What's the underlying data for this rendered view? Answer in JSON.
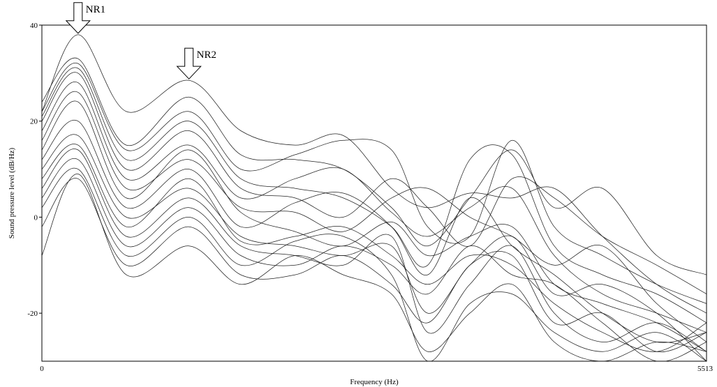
{
  "chart_data": {
    "type": "line",
    "title": "",
    "xlabel": "Frequency (Hz)",
    "ylabel": "Sound pressure level (dB/Hz)",
    "xlim": [
      0,
      5513
    ],
    "ylim": [
      -30,
      40
    ],
    "x_tick_labels": [
      "0",
      "5513"
    ],
    "y_ticks": [
      40,
      20,
      0,
      -20
    ],
    "y_tick_labels": [
      "40",
      "20",
      "0",
      "-20"
    ],
    "grid": false,
    "legend": "none",
    "annotations": [
      {
        "label": "NR1",
        "x": 300,
        "y": 38
      },
      {
        "label": "NR2",
        "x": 1220,
        "y": 28.5
      }
    ],
    "x": [
      0,
      300,
      700,
      1220,
      1650,
      2100,
      2500,
      2900,
      3200,
      3550,
      3900,
      4250,
      4650,
      5100,
      5513
    ],
    "series": [
      {
        "values": [
          22,
          38,
          22,
          28.5,
          18,
          15,
          17,
          6,
          2,
          5,
          4,
          6,
          -4,
          -14,
          -20
        ]
      },
      {
        "values": [
          24,
          33,
          15,
          25,
          13,
          12,
          10,
          2,
          -6,
          4,
          14,
          2,
          6,
          -8,
          -12
        ]
      },
      {
        "values": [
          22,
          32,
          14,
          22,
          10,
          13,
          16,
          14,
          -2,
          -4,
          16,
          -2,
          -8,
          -14,
          -18
        ]
      },
      {
        "values": [
          21,
          31,
          12,
          20,
          8,
          6,
          4,
          -2,
          -10,
          12,
          13,
          -6,
          -12,
          -16,
          -22
        ]
      },
      {
        "values": [
          20,
          30,
          10,
          18,
          6,
          4,
          0,
          8,
          2,
          -6,
          8,
          4,
          -4,
          -10,
          -16
        ]
      },
      {
        "values": [
          18,
          28,
          8,
          15,
          4,
          8,
          10,
          1,
          -4,
          2,
          6,
          -8,
          -16,
          -20,
          -24
        ]
      },
      {
        "values": [
          16,
          26,
          6,
          12,
          2,
          1,
          -3,
          4,
          6,
          0,
          -4,
          -10,
          -6,
          -18,
          -26
        ]
      },
      {
        "values": [
          14,
          24,
          4,
          14,
          1,
          -3,
          -6,
          -1,
          -8,
          -4,
          -2,
          -14,
          -18,
          -22,
          -28
        ]
      },
      {
        "values": [
          12,
          20,
          2,
          10,
          -2,
          3,
          5,
          -2,
          -12,
          4,
          -6,
          -12,
          -20,
          -26,
          -24
        ]
      },
      {
        "values": [
          10,
          17,
          0,
          6,
          -4,
          -6,
          -8,
          -6,
          -20,
          -10,
          -4,
          -16,
          -14,
          -20,
          -30
        ]
      },
      {
        "values": [
          8,
          15,
          -2,
          8,
          -5,
          -4,
          -2,
          -8,
          -14,
          -8,
          -10,
          -18,
          -24,
          -28,
          -22
        ]
      },
      {
        "values": [
          6,
          14,
          -4,
          4,
          -6,
          -8,
          -10,
          -4,
          -24,
          -14,
          -6,
          -20,
          -26,
          -22,
          -28
        ]
      },
      {
        "values": [
          4,
          12,
          -6,
          2,
          -8,
          -10,
          -6,
          -10,
          -16,
          -6,
          -12,
          -14,
          -22,
          -30,
          -26
        ]
      },
      {
        "values": [
          2,
          10,
          -8,
          0,
          -10,
          -5,
          -4,
          -12,
          -30,
          -18,
          -16,
          -24,
          -28,
          -24,
          -30
        ]
      },
      {
        "values": [
          -2,
          8,
          -10,
          -2,
          -12,
          -12,
          -8,
          -14,
          -22,
          -10,
          -8,
          -22,
          -20,
          -28,
          -24
        ]
      },
      {
        "values": [
          -8,
          9,
          -12,
          -6,
          -14,
          -8,
          -12,
          -16,
          -28,
          -20,
          -14,
          -26,
          -30,
          -26,
          -28
        ]
      }
    ]
  }
}
